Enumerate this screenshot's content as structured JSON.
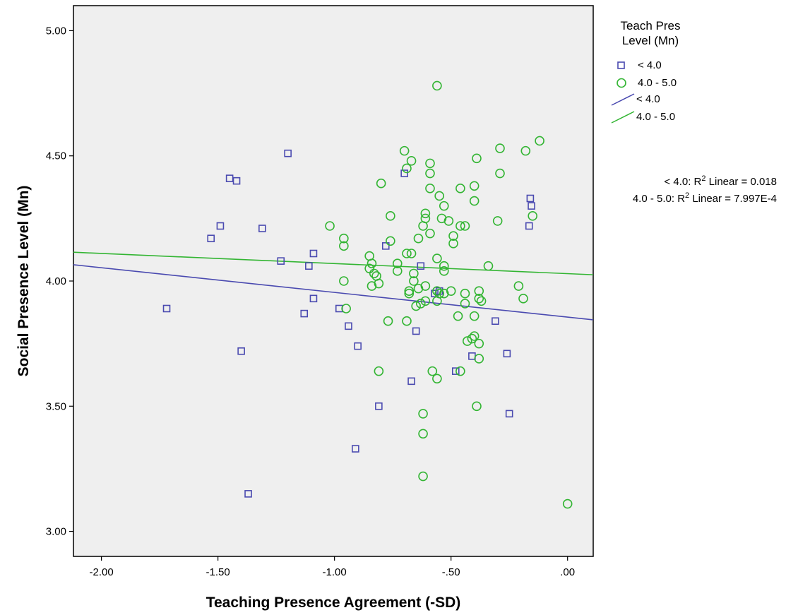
{
  "chart_data": {
    "type": "scatter",
    "title": "",
    "xlabel": "Teaching Presence Agreement (-SD)",
    "ylabel": "Social Presence Level (Mn)",
    "xlim": [
      -2.12,
      0.11
    ],
    "ylim": [
      2.9,
      5.1
    ],
    "x_ticks": [
      -2.0,
      -1.5,
      -1.0,
      -0.5,
      0.0
    ],
    "x_tick_labels": [
      "-2.00",
      "-1.50",
      "-1.00",
      "-.50",
      ".00"
    ],
    "y_ticks": [
      3.0,
      3.5,
      4.0,
      4.5,
      5.0
    ],
    "y_tick_labels": [
      "3.00",
      "3.50",
      "4.00",
      "4.50",
      "5.00"
    ],
    "grid": false,
    "legend_position": "right",
    "legend": {
      "title": "Teach Pres\nLevel (Mn)",
      "entries": [
        {
          "label": "< 4.0",
          "kind": "marker",
          "series": "low"
        },
        {
          "label": "4.0 - 5.0",
          "kind": "marker",
          "series": "mid"
        },
        {
          "label": "< 4.0",
          "kind": "line",
          "series": "low"
        },
        {
          "label": "4.0 - 5.0",
          "kind": "line",
          "series": "mid"
        }
      ]
    },
    "fit_annotations": [
      {
        "prefix": "< 4.0: R",
        "sup": "2",
        "suffix": " Linear = 0.018"
      },
      {
        "prefix": "4.0 - 5.0: R",
        "sup": "2",
        "suffix": " Linear = 7.997E-4"
      }
    ],
    "series": [
      {
        "id": "low",
        "name": "< 4.0",
        "marker": "square",
        "color": "#4a4ab0",
        "fit_line": {
          "x": [
            -2.12,
            0.11
          ],
          "y": [
            4.065,
            3.845
          ]
        },
        "points": [
          [
            -1.2,
            4.51
          ],
          [
            -1.45,
            4.41
          ],
          [
            -1.42,
            4.4
          ],
          [
            -1.49,
            4.22
          ],
          [
            -1.53,
            4.17
          ],
          [
            -1.31,
            4.21
          ],
          [
            -1.23,
            4.08
          ],
          [
            -1.09,
            4.11
          ],
          [
            -1.11,
            4.06
          ],
          [
            -1.72,
            3.89
          ],
          [
            -1.09,
            3.93
          ],
          [
            -1.13,
            3.87
          ],
          [
            -0.98,
            3.89
          ],
          [
            -0.94,
            3.82
          ],
          [
            -1.4,
            3.72
          ],
          [
            -0.9,
            3.74
          ],
          [
            -0.7,
            4.43
          ],
          [
            -0.78,
            4.14
          ],
          [
            -0.63,
            4.06
          ],
          [
            -0.65,
            3.8
          ],
          [
            -0.57,
            3.95
          ],
          [
            -0.55,
            3.96
          ],
          [
            -0.81,
            3.5
          ],
          [
            -0.67,
            3.6
          ],
          [
            -0.48,
            3.64
          ],
          [
            -0.91,
            3.33
          ],
          [
            -1.37,
            3.15
          ],
          [
            -0.31,
            3.84
          ],
          [
            -0.41,
            3.7
          ],
          [
            -0.26,
            3.71
          ],
          [
            -0.25,
            3.47
          ],
          [
            -0.16,
            4.33
          ],
          [
            -0.155,
            4.3
          ],
          [
            -0.165,
            4.22
          ]
        ]
      },
      {
        "id": "mid",
        "name": "4.0 - 5.0",
        "marker": "circle",
        "color": "#33b533",
        "fit_line": {
          "x": [
            -2.12,
            0.11
          ],
          "y": [
            4.115,
            4.025
          ]
        },
        "points": [
          [
            -0.56,
            4.78
          ],
          [
            -0.7,
            4.52
          ],
          [
            -0.67,
            4.48
          ],
          [
            -0.59,
            4.47
          ],
          [
            -0.69,
            4.45
          ],
          [
            -0.59,
            4.43
          ],
          [
            -0.8,
            4.39
          ],
          [
            -0.59,
            4.37
          ],
          [
            -0.46,
            4.37
          ],
          [
            -0.4,
            4.38
          ],
          [
            -0.55,
            4.34
          ],
          [
            -0.39,
            4.49
          ],
          [
            -0.29,
            4.53
          ],
          [
            -0.18,
            4.52
          ],
          [
            -0.12,
            4.56
          ],
          [
            -0.29,
            4.43
          ],
          [
            -0.4,
            4.32
          ],
          [
            -0.53,
            4.3
          ],
          [
            -0.61,
            4.27
          ],
          [
            -0.61,
            4.25
          ],
          [
            -0.76,
            4.26
          ],
          [
            -0.54,
            4.25
          ],
          [
            -0.51,
            4.24
          ],
          [
            -0.46,
            4.22
          ],
          [
            -0.44,
            4.22
          ],
          [
            -0.3,
            4.24
          ],
          [
            -0.15,
            4.26
          ],
          [
            -1.02,
            4.22
          ],
          [
            -0.96,
            4.17
          ],
          [
            -0.96,
            4.14
          ],
          [
            -0.62,
            4.22
          ],
          [
            -0.64,
            4.17
          ],
          [
            -0.59,
            4.19
          ],
          [
            -0.76,
            4.16
          ],
          [
            -0.49,
            4.18
          ],
          [
            -0.49,
            4.15
          ],
          [
            -0.73,
            4.07
          ],
          [
            -0.69,
            4.11
          ],
          [
            -0.67,
            4.11
          ],
          [
            -0.56,
            4.09
          ],
          [
            -0.53,
            4.06
          ],
          [
            -0.53,
            4.04
          ],
          [
            -0.85,
            4.1
          ],
          [
            -0.84,
            4.07
          ],
          [
            -0.85,
            4.05
          ],
          [
            -0.73,
            4.04
          ],
          [
            -0.34,
            4.06
          ],
          [
            -0.83,
            4.03
          ],
          [
            -0.82,
            4.02
          ],
          [
            -0.66,
            4.03
          ],
          [
            -0.96,
            4.0
          ],
          [
            -0.81,
            3.99
          ],
          [
            -0.84,
            3.98
          ],
          [
            -0.66,
            4.0
          ],
          [
            -0.68,
            3.96
          ],
          [
            -0.68,
            3.95
          ],
          [
            -0.64,
            3.97
          ],
          [
            -0.61,
            3.98
          ],
          [
            -0.56,
            3.96
          ],
          [
            -0.55,
            3.95
          ],
          [
            -0.53,
            3.95
          ],
          [
            -0.5,
            3.96
          ],
          [
            -0.44,
            3.95
          ],
          [
            -0.38,
            3.96
          ],
          [
            -0.38,
            3.93
          ],
          [
            -0.37,
            3.92
          ],
          [
            -0.61,
            3.92
          ],
          [
            -0.63,
            3.91
          ],
          [
            -0.65,
            3.9
          ],
          [
            -0.56,
            3.92
          ],
          [
            -0.44,
            3.91
          ],
          [
            -0.21,
            3.98
          ],
          [
            -0.19,
            3.93
          ],
          [
            -0.95,
            3.89
          ],
          [
            -0.4,
            3.86
          ],
          [
            -0.47,
            3.86
          ],
          [
            -0.77,
            3.84
          ],
          [
            -0.69,
            3.84
          ],
          [
            -0.4,
            3.78
          ],
          [
            -0.41,
            3.77
          ],
          [
            -0.43,
            3.76
          ],
          [
            -0.38,
            3.75
          ],
          [
            -0.38,
            3.69
          ],
          [
            -0.81,
            3.64
          ],
          [
            -0.58,
            3.64
          ],
          [
            -0.46,
            3.64
          ],
          [
            -0.56,
            3.61
          ],
          [
            -0.39,
            3.5
          ],
          [
            -0.62,
            3.47
          ],
          [
            -0.62,
            3.39
          ],
          [
            -0.62,
            3.22
          ],
          [
            0.0,
            3.11
          ]
        ]
      }
    ]
  }
}
